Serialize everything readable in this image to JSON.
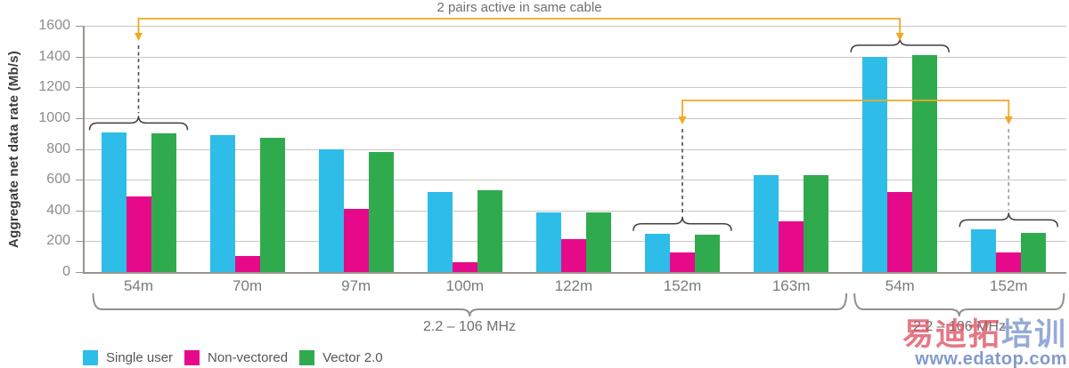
{
  "chart_data": {
    "type": "bar",
    "ylabel": "Aggregate net data rate (Mb/s)",
    "ylim": [
      0,
      1600
    ],
    "yticks": [
      0,
      200,
      400,
      600,
      800,
      1000,
      1200,
      1400,
      1600
    ],
    "grid": "horizontal",
    "legend_position": "bottom-left",
    "categories": [
      "54m",
      "70m",
      "97m",
      "100m",
      "122m",
      "152m",
      "163m",
      "54m",
      "152m"
    ],
    "series": [
      {
        "name": "Single user",
        "color": "#2EBDE9",
        "values": [
          905,
          890,
          800,
          520,
          390,
          250,
          630,
          1400,
          275
        ]
      },
      {
        "name": "Non-vectored",
        "color": "#E60A8B",
        "values": [
          490,
          105,
          410,
          65,
          215,
          125,
          330,
          520,
          130
        ]
      },
      {
        "name": "Vector 2.0",
        "color": "#2FAB4E",
        "values": [
          900,
          870,
          780,
          530,
          385,
          245,
          630,
          1410,
          255
        ]
      }
    ],
    "group_labels": [
      {
        "label": "2.2 – 106 MHz",
        "category_span": [
          0,
          6
        ]
      },
      {
        "label": "2.2 – 106 MHz",
        "category_span": [
          7,
          8
        ]
      }
    ],
    "annotations": {
      "top_note": {
        "text": "2 pairs active in same cable",
        "connects_categories": [
          0,
          7
        ]
      },
      "mid_connector": {
        "connects_categories": [
          5,
          8
        ]
      },
      "braced_categories": [
        0,
        5,
        7,
        8
      ]
    },
    "colors": {
      "connector_orange": "#F5A71F",
      "gridline": "#CBC6C0",
      "axis": "#9B948D",
      "brace_small": "#3F3F3F",
      "brace_big": "#8F8F8F",
      "dash_dark": "#4F4F4F",
      "dash_light": "#999999"
    }
  },
  "watermark": {
    "line1_red": "易迪拓",
    "line1_blue": "培训",
    "line2": "www.edatop.com"
  }
}
